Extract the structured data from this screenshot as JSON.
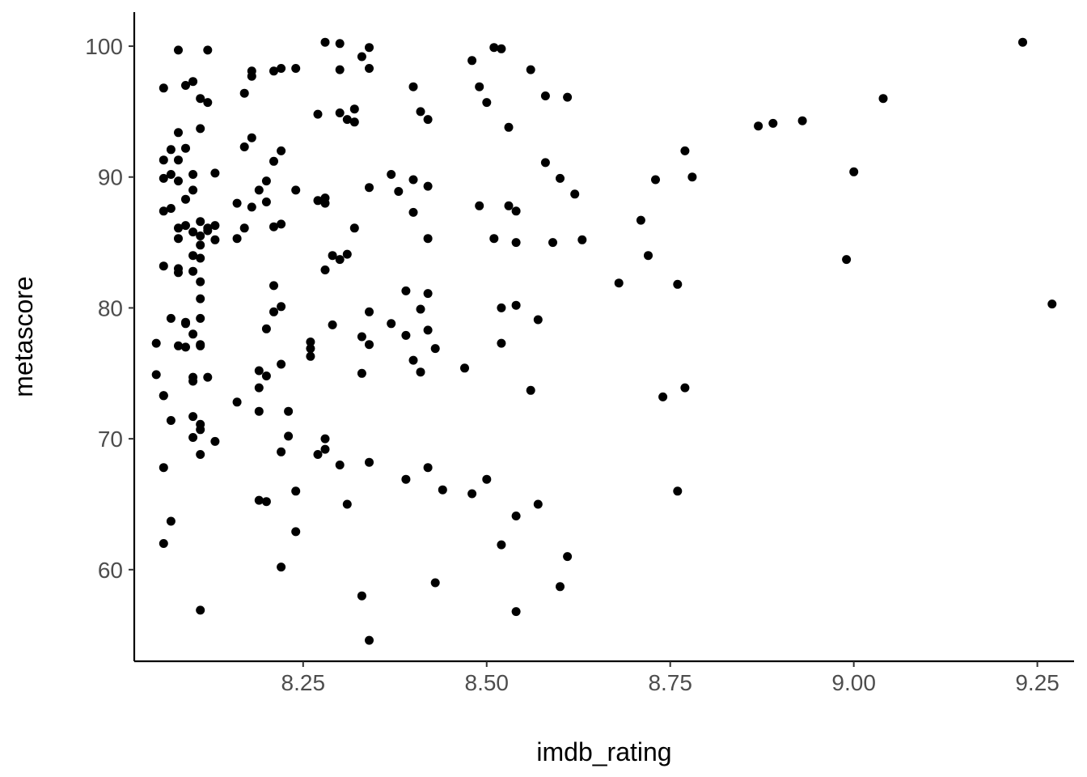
{
  "chart_data": {
    "type": "scatter",
    "title": "",
    "xlabel": "imdb_rating",
    "ylabel": "metascore",
    "xlim": [
      8.02,
      9.3
    ],
    "ylim": [
      53,
      102.6
    ],
    "x_ticks": [
      8.25,
      8.5,
      8.75,
      9.0,
      9.25
    ],
    "x_tick_labels": [
      "8.25",
      "8.50",
      "8.75",
      "9.00",
      "9.25"
    ],
    "y_ticks": [
      60,
      70,
      80,
      90,
      100
    ],
    "y_tick_labels": [
      "60",
      "70",
      "80",
      "90",
      "100"
    ],
    "grid": false,
    "point_color": "#000000",
    "series": [
      {
        "points": [
          [
            9.23,
            100.3
          ],
          [
            9.27,
            80.3
          ],
          [
            9.04,
            96.0
          ],
          [
            9.0,
            90.4
          ],
          [
            8.99,
            83.7
          ],
          [
            8.87,
            93.9
          ],
          [
            8.89,
            94.1
          ],
          [
            8.93,
            94.3
          ],
          [
            8.77,
            92.0
          ],
          [
            8.78,
            90.0
          ],
          [
            8.73,
            89.8
          ],
          [
            8.71,
            86.7
          ],
          [
            8.72,
            84.0
          ],
          [
            8.68,
            81.9
          ],
          [
            8.76,
            81.8
          ],
          [
            8.77,
            73.9
          ],
          [
            8.74,
            73.2
          ],
          [
            8.76,
            66.0
          ],
          [
            8.61,
            96.1
          ],
          [
            8.58,
            96.2
          ],
          [
            8.56,
            98.2
          ],
          [
            8.58,
            91.1
          ],
          [
            8.6,
            89.9
          ],
          [
            8.62,
            88.7
          ],
          [
            8.59,
            85.0
          ],
          [
            8.63,
            85.2
          ],
          [
            8.57,
            79.1
          ],
          [
            8.56,
            73.7
          ],
          [
            8.57,
            65.0
          ],
          [
            8.61,
            61.0
          ],
          [
            8.6,
            58.7
          ],
          [
            8.48,
            98.9
          ],
          [
            8.51,
            99.9
          ],
          [
            8.52,
            99.8
          ],
          [
            8.49,
            96.9
          ],
          [
            8.5,
            95.7
          ],
          [
            8.53,
            93.8
          ],
          [
            8.49,
            87.8
          ],
          [
            8.53,
            87.8
          ],
          [
            8.54,
            87.4
          ],
          [
            8.51,
            85.3
          ],
          [
            8.54,
            85.0
          ],
          [
            8.52,
            80.0
          ],
          [
            8.54,
            80.2
          ],
          [
            8.52,
            77.3
          ],
          [
            8.47,
            75.4
          ],
          [
            8.5,
            66.9
          ],
          [
            8.48,
            65.8
          ],
          [
            8.54,
            64.1
          ],
          [
            8.52,
            61.9
          ],
          [
            8.54,
            56.8
          ],
          [
            8.4,
            96.9
          ],
          [
            8.41,
            95.0
          ],
          [
            8.42,
            94.4
          ],
          [
            8.37,
            90.2
          ],
          [
            8.4,
            89.8
          ],
          [
            8.38,
            88.9
          ],
          [
            8.42,
            89.3
          ],
          [
            8.4,
            87.3
          ],
          [
            8.42,
            85.3
          ],
          [
            8.39,
            81.3
          ],
          [
            8.42,
            81.1
          ],
          [
            8.41,
            79.9
          ],
          [
            8.37,
            78.8
          ],
          [
            8.39,
            77.9
          ],
          [
            8.42,
            78.3
          ],
          [
            8.4,
            76.0
          ],
          [
            8.41,
            75.1
          ],
          [
            8.43,
            76.9
          ],
          [
            8.39,
            66.9
          ],
          [
            8.42,
            67.8
          ],
          [
            8.44,
            66.1
          ],
          [
            8.43,
            59.0
          ],
          [
            8.28,
            100.3
          ],
          [
            8.3,
            100.2
          ],
          [
            8.34,
            99.9
          ],
          [
            8.33,
            99.2
          ],
          [
            8.3,
            98.2
          ],
          [
            8.34,
            98.3
          ],
          [
            8.27,
            94.8
          ],
          [
            8.3,
            94.9
          ],
          [
            8.31,
            94.4
          ],
          [
            8.32,
            95.2
          ],
          [
            8.32,
            94.2
          ],
          [
            8.34,
            89.2
          ],
          [
            8.27,
            88.2
          ],
          [
            8.28,
            88.4
          ],
          [
            8.28,
            88.0
          ],
          [
            8.32,
            86.1
          ],
          [
            8.29,
            84.0
          ],
          [
            8.3,
            83.7
          ],
          [
            8.31,
            84.1
          ],
          [
            8.28,
            82.9
          ],
          [
            8.29,
            78.7
          ],
          [
            8.34,
            79.7
          ],
          [
            8.33,
            77.8
          ],
          [
            8.34,
            77.2
          ],
          [
            8.26,
            77.4
          ],
          [
            8.26,
            76.9
          ],
          [
            8.26,
            76.3
          ],
          [
            8.33,
            75.0
          ],
          [
            8.28,
            70.0
          ],
          [
            8.27,
            68.8
          ],
          [
            8.28,
            69.2
          ],
          [
            8.3,
            68.0
          ],
          [
            8.34,
            68.2
          ],
          [
            8.31,
            65.0
          ],
          [
            8.33,
            58.0
          ],
          [
            8.34,
            54.6
          ],
          [
            8.18,
            98.1
          ],
          [
            8.18,
            97.7
          ],
          [
            8.21,
            98.1
          ],
          [
            8.22,
            98.3
          ],
          [
            8.24,
            98.3
          ],
          [
            8.17,
            96.4
          ],
          [
            8.17,
            92.3
          ],
          [
            8.18,
            93.0
          ],
          [
            8.22,
            92.0
          ],
          [
            8.21,
            91.2
          ],
          [
            8.2,
            89.7
          ],
          [
            8.19,
            89.0
          ],
          [
            8.24,
            89.0
          ],
          [
            8.16,
            88.0
          ],
          [
            8.18,
            87.7
          ],
          [
            8.2,
            88.1
          ],
          [
            8.17,
            86.1
          ],
          [
            8.21,
            86.2
          ],
          [
            8.22,
            86.4
          ],
          [
            8.16,
            85.3
          ],
          [
            8.21,
            81.7
          ],
          [
            8.21,
            79.7
          ],
          [
            8.22,
            80.1
          ],
          [
            8.2,
            78.4
          ],
          [
            8.19,
            75.2
          ],
          [
            8.2,
            74.8
          ],
          [
            8.22,
            75.7
          ],
          [
            8.19,
            73.9
          ],
          [
            8.16,
            72.8
          ],
          [
            8.19,
            72.1
          ],
          [
            8.23,
            72.1
          ],
          [
            8.23,
            70.2
          ],
          [
            8.22,
            69.0
          ],
          [
            8.24,
            66.0
          ],
          [
            8.19,
            65.3
          ],
          [
            8.2,
            65.2
          ],
          [
            8.24,
            62.9
          ],
          [
            8.22,
            60.2
          ],
          [
            8.08,
            99.7
          ],
          [
            8.12,
            99.7
          ],
          [
            8.06,
            96.8
          ],
          [
            8.09,
            97.0
          ],
          [
            8.1,
            97.3
          ],
          [
            8.11,
            96.0
          ],
          [
            8.12,
            95.7
          ],
          [
            8.11,
            93.7
          ],
          [
            8.08,
            93.4
          ],
          [
            8.07,
            92.1
          ],
          [
            8.09,
            92.2
          ],
          [
            8.06,
            91.3
          ],
          [
            8.08,
            91.3
          ],
          [
            8.07,
            90.2
          ],
          [
            8.06,
            89.9
          ],
          [
            8.08,
            89.7
          ],
          [
            8.1,
            90.2
          ],
          [
            8.13,
            90.3
          ],
          [
            8.1,
            89.0
          ],
          [
            8.09,
            88.3
          ],
          [
            8.07,
            87.6
          ],
          [
            8.06,
            87.4
          ],
          [
            8.08,
            86.1
          ],
          [
            8.09,
            86.3
          ],
          [
            8.11,
            86.6
          ],
          [
            8.12,
            85.9
          ],
          [
            8.12,
            86.1
          ],
          [
            8.13,
            86.3
          ],
          [
            8.1,
            85.8
          ],
          [
            8.08,
            85.3
          ],
          [
            8.11,
            85.5
          ],
          [
            8.13,
            85.2
          ],
          [
            8.11,
            84.8
          ],
          [
            8.1,
            84.0
          ],
          [
            8.11,
            83.8
          ],
          [
            8.06,
            83.2
          ],
          [
            8.08,
            83.0
          ],
          [
            8.08,
            82.7
          ],
          [
            8.1,
            82.8
          ],
          [
            8.11,
            82.0
          ],
          [
            8.11,
            80.7
          ],
          [
            8.07,
            79.2
          ],
          [
            8.09,
            78.9
          ],
          [
            8.09,
            78.8
          ],
          [
            8.11,
            79.2
          ],
          [
            8.1,
            78.0
          ],
          [
            8.05,
            77.3
          ],
          [
            8.08,
            77.1
          ],
          [
            8.09,
            77.0
          ],
          [
            8.11,
            77.2
          ],
          [
            8.11,
            77.1
          ],
          [
            8.05,
            74.9
          ],
          [
            8.1,
            74.7
          ],
          [
            8.1,
            74.4
          ],
          [
            8.12,
            74.7
          ],
          [
            8.06,
            73.3
          ],
          [
            8.06,
            73.3
          ],
          [
            8.07,
            71.4
          ],
          [
            8.1,
            71.7
          ],
          [
            8.11,
            71.1
          ],
          [
            8.11,
            70.7
          ],
          [
            8.1,
            70.1
          ],
          [
            8.13,
            69.8
          ],
          [
            8.11,
            68.8
          ],
          [
            8.06,
            67.8
          ],
          [
            8.07,
            63.7
          ],
          [
            8.06,
            62.0
          ],
          [
            8.11,
            56.9
          ]
        ]
      }
    ]
  }
}
